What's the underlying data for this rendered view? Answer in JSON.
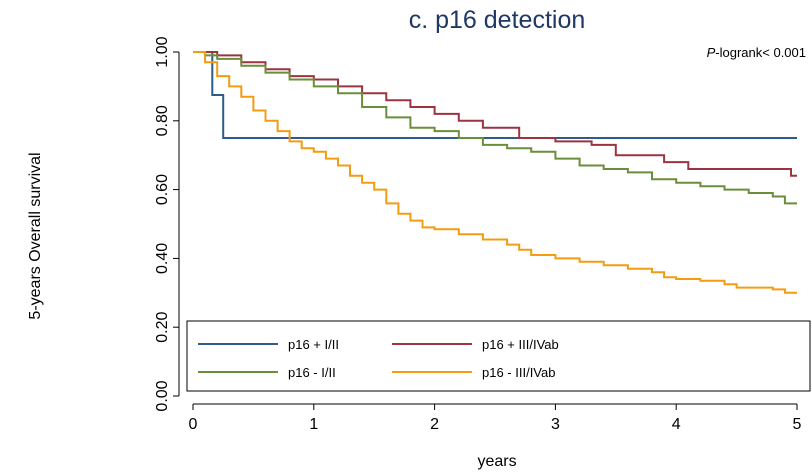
{
  "chart_data": {
    "type": "line",
    "title": "c. p16 detection",
    "xlabel": "years",
    "ylabel": "5-years Overall survival",
    "xlim": [
      0,
      5
    ],
    "ylim": [
      0,
      1
    ],
    "x_ticks": [
      0,
      1,
      2,
      3,
      4,
      5
    ],
    "x_tick_labels": [
      "0",
      "1",
      "2",
      "3",
      "4",
      "5"
    ],
    "y_ticks": [
      0,
      0.2,
      0.4,
      0.6,
      0.8,
      1.0
    ],
    "y_tick_labels": [
      "0.00",
      "0.20",
      "0.40",
      "0.60",
      "0.80",
      "1.00"
    ],
    "grid": false,
    "step": true,
    "legend_position": "bottom-left",
    "annotation": {
      "italic_part": "P",
      "rest": "-logrank< 0.001"
    },
    "series": [
      {
        "name": "p16 + I/II",
        "color": "#2e5b8a",
        "points": [
          [
            0,
            1.0
          ],
          [
            0.16,
            1.0
          ],
          [
            0.16,
            0.875
          ],
          [
            0.25,
            0.875
          ],
          [
            0.25,
            0.75
          ],
          [
            5,
            0.75
          ]
        ]
      },
      {
        "name": "p16 + III/IVab",
        "color": "#9b3440",
        "points": [
          [
            0,
            1.0
          ],
          [
            0.1,
            1.0
          ],
          [
            0.2,
            0.99
          ],
          [
            0.4,
            0.97
          ],
          [
            0.6,
            0.95
          ],
          [
            0.8,
            0.93
          ],
          [
            1.0,
            0.92
          ],
          [
            1.2,
            0.9
          ],
          [
            1.4,
            0.88
          ],
          [
            1.6,
            0.86
          ],
          [
            1.8,
            0.84
          ],
          [
            2.0,
            0.82
          ],
          [
            2.2,
            0.8
          ],
          [
            2.4,
            0.78
          ],
          [
            2.7,
            0.77
          ],
          [
            2.7,
            0.75
          ],
          [
            3.0,
            0.74
          ],
          [
            3.3,
            0.73
          ],
          [
            3.5,
            0.72
          ],
          [
            3.5,
            0.7
          ],
          [
            3.9,
            0.7
          ],
          [
            3.9,
            0.68
          ],
          [
            4.1,
            0.68
          ],
          [
            4.1,
            0.66
          ],
          [
            4.95,
            0.66
          ],
          [
            4.95,
            0.64
          ],
          [
            5.0,
            0.64
          ]
        ]
      },
      {
        "name": "p16 - I/II",
        "color": "#6b8e3a",
        "points": [
          [
            0,
            1.0
          ],
          [
            0.1,
            0.99
          ],
          [
            0.2,
            0.98
          ],
          [
            0.4,
            0.96
          ],
          [
            0.6,
            0.94
          ],
          [
            0.8,
            0.92
          ],
          [
            1.0,
            0.9
          ],
          [
            1.2,
            0.88
          ],
          [
            1.4,
            0.84
          ],
          [
            1.6,
            0.81
          ],
          [
            1.8,
            0.78
          ],
          [
            2.0,
            0.77
          ],
          [
            2.2,
            0.75
          ],
          [
            2.4,
            0.73
          ],
          [
            2.6,
            0.72
          ],
          [
            2.8,
            0.71
          ],
          [
            3.0,
            0.69
          ],
          [
            3.2,
            0.67
          ],
          [
            3.4,
            0.66
          ],
          [
            3.6,
            0.65
          ],
          [
            3.8,
            0.63
          ],
          [
            4.0,
            0.62
          ],
          [
            4.2,
            0.61
          ],
          [
            4.4,
            0.6
          ],
          [
            4.6,
            0.59
          ],
          [
            4.8,
            0.58
          ],
          [
            4.9,
            0.56
          ],
          [
            5.0,
            0.56
          ]
        ]
      },
      {
        "name": "p16 - III/IVab",
        "color": "#f39c12",
        "points": [
          [
            0,
            1.0
          ],
          [
            0.1,
            0.97
          ],
          [
            0.2,
            0.93
          ],
          [
            0.3,
            0.9
          ],
          [
            0.4,
            0.87
          ],
          [
            0.5,
            0.83
          ],
          [
            0.6,
            0.8
          ],
          [
            0.7,
            0.77
          ],
          [
            0.8,
            0.74
          ],
          [
            0.9,
            0.72
          ],
          [
            1.0,
            0.71
          ],
          [
            1.1,
            0.69
          ],
          [
            1.2,
            0.67
          ],
          [
            1.3,
            0.64
          ],
          [
            1.4,
            0.62
          ],
          [
            1.5,
            0.6
          ],
          [
            1.6,
            0.56
          ],
          [
            1.7,
            0.53
          ],
          [
            1.8,
            0.51
          ],
          [
            1.9,
            0.49
          ],
          [
            2.0,
            0.485
          ],
          [
            2.2,
            0.47
          ],
          [
            2.4,
            0.455
          ],
          [
            2.6,
            0.44
          ],
          [
            2.7,
            0.425
          ],
          [
            2.8,
            0.41
          ],
          [
            3.0,
            0.4
          ],
          [
            3.2,
            0.39
          ],
          [
            3.4,
            0.38
          ],
          [
            3.6,
            0.37
          ],
          [
            3.8,
            0.36
          ],
          [
            3.9,
            0.345
          ],
          [
            4.0,
            0.34
          ],
          [
            4.2,
            0.335
          ],
          [
            4.4,
            0.325
          ],
          [
            4.5,
            0.315
          ],
          [
            4.8,
            0.31
          ],
          [
            4.9,
            0.3
          ],
          [
            5.0,
            0.3
          ]
        ]
      }
    ]
  }
}
